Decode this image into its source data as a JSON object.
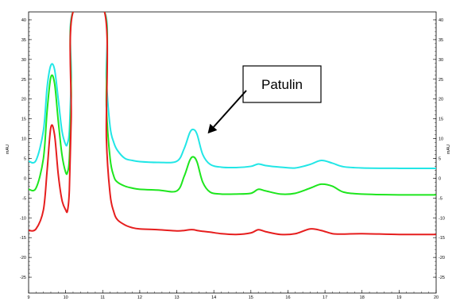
{
  "chart_data": {
    "type": "line",
    "title": "",
    "xlabel": "",
    "ylabel": "mAU",
    "ylabel_right": "mAU",
    "xlim": [
      9,
      20
    ],
    "ylim": [
      -29,
      42
    ],
    "x_ticks": [
      9,
      10,
      11,
      12,
      13,
      14,
      15,
      16,
      17,
      18,
      19,
      20
    ],
    "y_ticks": [
      40,
      35,
      30,
      25,
      20,
      15,
      10,
      5,
      0,
      -5,
      -10,
      -15,
      -20,
      -25
    ],
    "grid": false,
    "legend": "none",
    "annotation": {
      "text": "Patulin",
      "points_to": [
        13.45,
        12.3
      ]
    },
    "series": [
      {
        "color": "#22e6e6",
        "x": [
          9.0,
          9.2,
          9.4,
          9.5,
          9.6,
          9.7,
          9.8,
          9.9,
          10.0,
          10.05,
          10.1,
          10.15,
          10.2,
          11.05,
          11.1,
          11.2,
          11.3,
          11.4,
          11.6,
          11.8,
          12.0,
          12.5,
          13.0,
          13.2,
          13.35,
          13.45,
          13.55,
          13.7,
          13.9,
          14.2,
          14.6,
          15.0,
          15.2,
          15.4,
          15.8,
          16.2,
          16.6,
          16.9,
          17.2,
          17.5,
          18.0,
          19.0,
          20.0
        ],
        "y": [
          4.3,
          4.5,
          12.0,
          23.0,
          28.5,
          27.5,
          20.0,
          12.0,
          8.5,
          8.8,
          12.0,
          25.0,
          42.0,
          42.0,
          25.0,
          13.0,
          9.0,
          7.0,
          5.0,
          4.5,
          4.2,
          4.0,
          4.3,
          7.5,
          11.5,
          12.3,
          11.0,
          6.0,
          3.5,
          2.8,
          2.7,
          3.0,
          3.6,
          3.2,
          2.8,
          2.6,
          3.5,
          4.5,
          3.8,
          2.9,
          2.6,
          2.5,
          2.5
        ]
      },
      {
        "color": "#1ee61e",
        "x": [
          9.0,
          9.2,
          9.4,
          9.5,
          9.6,
          9.7,
          9.8,
          9.9,
          10.0,
          10.05,
          10.1,
          10.15,
          10.2,
          11.05,
          11.1,
          11.2,
          11.3,
          11.4,
          11.6,
          11.8,
          12.0,
          12.5,
          13.0,
          13.2,
          13.35,
          13.45,
          13.55,
          13.7,
          13.9,
          14.2,
          14.6,
          15.0,
          15.2,
          15.4,
          15.8,
          16.2,
          16.6,
          16.9,
          17.2,
          17.5,
          18.0,
          19.0,
          20.0
        ],
        "y": [
          -2.8,
          -2.5,
          5.0,
          17.0,
          25.5,
          24.0,
          14.5,
          6.0,
          1.5,
          1.5,
          5.0,
          20.0,
          42.0,
          42.0,
          18.0,
          5.0,
          0.5,
          -1.0,
          -2.0,
          -2.5,
          -2.8,
          -3.0,
          -3.2,
          0.5,
          4.5,
          5.4,
          4.0,
          -1.0,
          -3.5,
          -4.0,
          -4.0,
          -3.8,
          -2.8,
          -3.2,
          -4.0,
          -3.8,
          -2.5,
          -1.5,
          -2.0,
          -3.5,
          -4.0,
          -4.2,
          -4.2
        ]
      },
      {
        "color": "#e61e1e",
        "x": [
          9.0,
          9.2,
          9.4,
          9.5,
          9.6,
          9.7,
          9.8,
          9.9,
          10.0,
          10.05,
          10.1,
          10.15,
          10.2,
          11.05,
          11.1,
          11.2,
          11.3,
          11.4,
          11.6,
          11.8,
          12.0,
          12.5,
          13.0,
          13.2,
          13.35,
          13.45,
          13.55,
          13.7,
          13.9,
          14.2,
          14.6,
          15.0,
          15.2,
          15.4,
          15.8,
          16.2,
          16.6,
          16.9,
          17.2,
          17.5,
          18.0,
          19.0,
          20.0
        ],
        "y": [
          -13.2,
          -12.8,
          -8.0,
          2.0,
          12.8,
          11.0,
          1.0,
          -5.5,
          -8.0,
          -8.2,
          -3.0,
          15.0,
          42.0,
          42.0,
          10.0,
          -4.0,
          -8.5,
          -10.5,
          -11.8,
          -12.5,
          -12.8,
          -13.0,
          -13.3,
          -13.2,
          -13.0,
          -13.0,
          -13.2,
          -13.4,
          -13.6,
          -14.0,
          -14.2,
          -13.8,
          -13.0,
          -13.5,
          -14.2,
          -14.0,
          -12.8,
          -13.2,
          -14.0,
          -14.1,
          -14.0,
          -14.2,
          -14.2
        ]
      }
    ]
  }
}
